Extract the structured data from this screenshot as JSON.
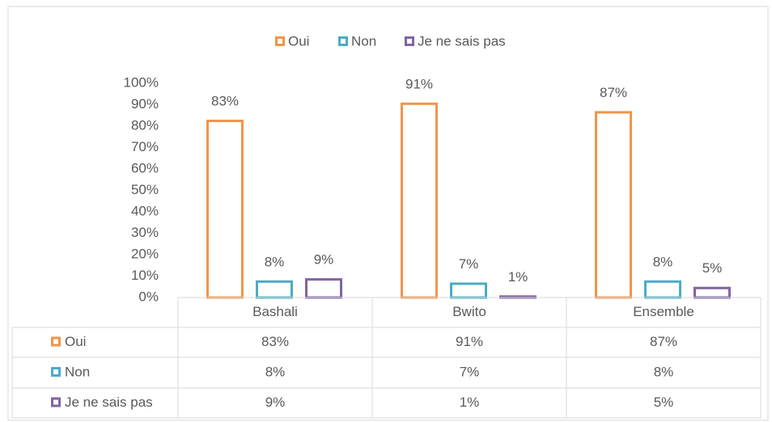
{
  "chart_data": {
    "type": "bar",
    "categories": [
      "Bashali",
      "Bwito",
      "Ensemble"
    ],
    "series": [
      {
        "name": "Oui",
        "color": "#f0954a",
        "values": [
          83,
          91,
          87
        ],
        "value_labels": [
          "83%",
          "91%",
          "87%"
        ]
      },
      {
        "name": "Non",
        "color": "#4bacc6",
        "values": [
          8,
          7,
          8
        ],
        "value_labels": [
          "8%",
          "7%",
          "8%"
        ]
      },
      {
        "name": "Je ne sais pas",
        "color": "#8064a2",
        "values": [
          9,
          1,
          5
        ],
        "value_labels": [
          "9%",
          "1%",
          "5%"
        ]
      }
    ],
    "ylim": [
      0,
      100
    ],
    "yticks": [
      {
        "value": 0,
        "label": "0%"
      },
      {
        "value": 10,
        "label": "10%"
      },
      {
        "value": 20,
        "label": "20%"
      },
      {
        "value": 30,
        "label": "30%"
      },
      {
        "value": 40,
        "label": "40%"
      },
      {
        "value": 50,
        "label": "50%"
      },
      {
        "value": 60,
        "label": "60%"
      },
      {
        "value": 70,
        "label": "70%"
      },
      {
        "value": 80,
        "label": "80%"
      },
      {
        "value": 90,
        "label": "90%"
      },
      {
        "value": 100,
        "label": "100%"
      }
    ],
    "legend": "top",
    "data_table": true
  }
}
